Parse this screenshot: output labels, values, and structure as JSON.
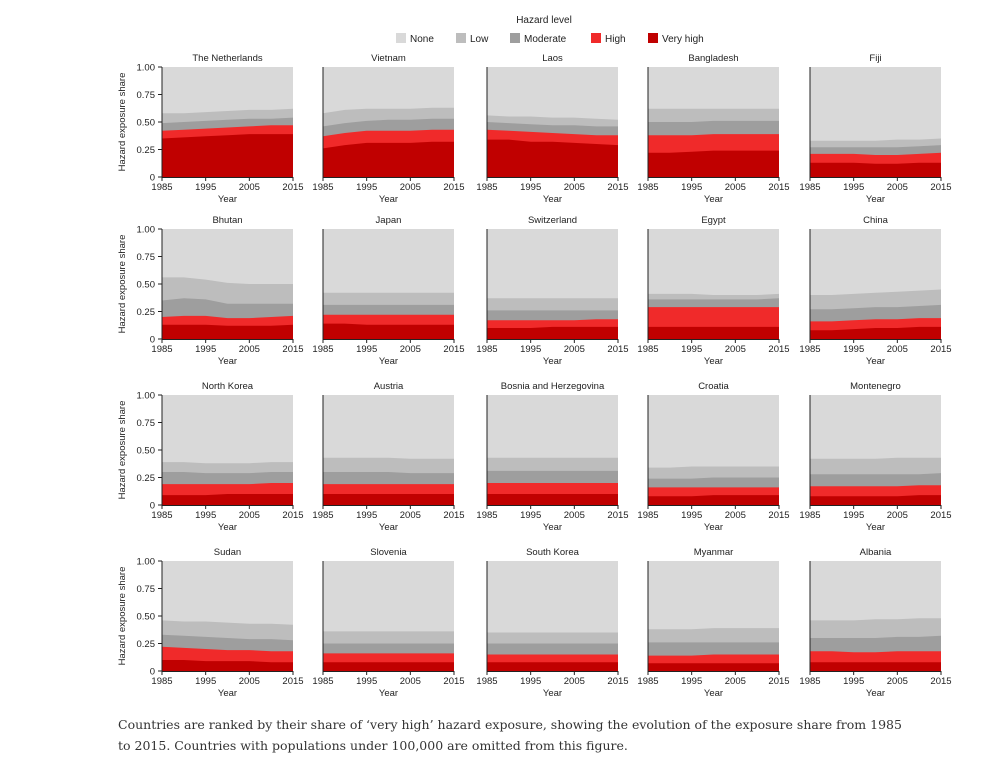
{
  "legend": {
    "title": "Hazard level",
    "items": [
      {
        "label": "None",
        "color": "#d9d9d9"
      },
      {
        "label": "Low",
        "color": "#bdbdbd"
      },
      {
        "label": "Moderate",
        "color": "#9e9e9e"
      },
      {
        "label": "High",
        "color": "#f02a2a"
      },
      {
        "label": "Very high",
        "color": "#c00000"
      }
    ]
  },
  "caption": "Countries are ranked by their share of ‘very high’ hazard exposure, showing the evolution of the exposure share from 1985 to 2015. Countries with populations under 100,000 are omitted from this figure.",
  "chart_data": {
    "type": "area",
    "stacked": true,
    "xlabel": "Year",
    "ylabel": "Hazard exposure share",
    "x_ticks": [
      1985,
      1995,
      2005,
      2015
    ],
    "y_ticks": [
      "0",
      "0.25",
      "0.50",
      "0.75",
      "1.00"
    ],
    "ylim": [
      0,
      1
    ],
    "xlim": [
      1985,
      2015
    ],
    "x": [
      1985,
      1990,
      1995,
      2000,
      2005,
      2010,
      2015
    ],
    "series_order": [
      "Very high",
      "High",
      "Moderate",
      "Low",
      "None"
    ],
    "panels": [
      {
        "title": "The Netherlands",
        "cumulative": {
          "Very high": [
            0.35,
            0.36,
            0.37,
            0.38,
            0.39,
            0.39,
            0.39
          ],
          "High": [
            0.42,
            0.43,
            0.44,
            0.45,
            0.46,
            0.47,
            0.47
          ],
          "Moderate": [
            0.49,
            0.5,
            0.51,
            0.52,
            0.53,
            0.53,
            0.54
          ],
          "Low": [
            0.58,
            0.58,
            0.59,
            0.6,
            0.61,
            0.61,
            0.62
          ]
        }
      },
      {
        "title": "Vietnam",
        "cumulative": {
          "Very high": [
            0.26,
            0.29,
            0.31,
            0.31,
            0.31,
            0.32,
            0.32
          ],
          "High": [
            0.37,
            0.4,
            0.42,
            0.42,
            0.42,
            0.43,
            0.43
          ],
          "Moderate": [
            0.46,
            0.49,
            0.51,
            0.52,
            0.52,
            0.53,
            0.53
          ],
          "Low": [
            0.58,
            0.61,
            0.62,
            0.62,
            0.62,
            0.63,
            0.63
          ]
        }
      },
      {
        "title": "Laos",
        "cumulative": {
          "Very high": [
            0.34,
            0.34,
            0.32,
            0.32,
            0.31,
            0.3,
            0.29
          ],
          "High": [
            0.43,
            0.42,
            0.41,
            0.4,
            0.39,
            0.38,
            0.38
          ],
          "Moderate": [
            0.5,
            0.49,
            0.48,
            0.47,
            0.47,
            0.46,
            0.46
          ],
          "Low": [
            0.56,
            0.55,
            0.55,
            0.54,
            0.54,
            0.53,
            0.52
          ]
        }
      },
      {
        "title": "Bangladesh",
        "cumulative": {
          "Very high": [
            0.22,
            0.22,
            0.23,
            0.24,
            0.24,
            0.24,
            0.24
          ],
          "High": [
            0.38,
            0.38,
            0.38,
            0.39,
            0.39,
            0.39,
            0.39
          ],
          "Moderate": [
            0.5,
            0.5,
            0.5,
            0.51,
            0.51,
            0.51,
            0.51
          ],
          "Low": [
            0.62,
            0.62,
            0.62,
            0.62,
            0.62,
            0.62,
            0.62
          ]
        }
      },
      {
        "title": "Fiji",
        "cumulative": {
          "Very high": [
            0.13,
            0.13,
            0.13,
            0.12,
            0.12,
            0.13,
            0.13
          ],
          "High": [
            0.21,
            0.21,
            0.21,
            0.2,
            0.2,
            0.21,
            0.22
          ],
          "Moderate": [
            0.27,
            0.27,
            0.27,
            0.27,
            0.27,
            0.28,
            0.29
          ],
          "Low": [
            0.33,
            0.33,
            0.33,
            0.33,
            0.34,
            0.34,
            0.35
          ]
        }
      },
      {
        "title": "Bhutan",
        "cumulative": {
          "Very high": [
            0.13,
            0.13,
            0.13,
            0.12,
            0.12,
            0.12,
            0.13
          ],
          "High": [
            0.2,
            0.21,
            0.21,
            0.19,
            0.19,
            0.2,
            0.21
          ],
          "Moderate": [
            0.35,
            0.37,
            0.36,
            0.32,
            0.32,
            0.32,
            0.32
          ],
          "Low": [
            0.56,
            0.56,
            0.54,
            0.51,
            0.5,
            0.5,
            0.5
          ]
        }
      },
      {
        "title": "Japan",
        "cumulative": {
          "Very high": [
            0.14,
            0.14,
            0.13,
            0.13,
            0.13,
            0.13,
            0.13
          ],
          "High": [
            0.22,
            0.22,
            0.22,
            0.22,
            0.22,
            0.22,
            0.22
          ],
          "Moderate": [
            0.31,
            0.31,
            0.31,
            0.31,
            0.31,
            0.31,
            0.31
          ],
          "Low": [
            0.42,
            0.42,
            0.42,
            0.42,
            0.42,
            0.42,
            0.42
          ]
        }
      },
      {
        "title": "Switzerland",
        "cumulative": {
          "Very high": [
            0.1,
            0.1,
            0.1,
            0.11,
            0.11,
            0.11,
            0.11
          ],
          "High": [
            0.17,
            0.17,
            0.17,
            0.17,
            0.17,
            0.18,
            0.18
          ],
          "Moderate": [
            0.26,
            0.26,
            0.26,
            0.26,
            0.26,
            0.26,
            0.26
          ],
          "Low": [
            0.37,
            0.37,
            0.37,
            0.37,
            0.37,
            0.37,
            0.37
          ]
        }
      },
      {
        "title": "Egypt",
        "cumulative": {
          "Very high": [
            0.11,
            0.11,
            0.11,
            0.11,
            0.11,
            0.11,
            0.11
          ],
          "High": [
            0.29,
            0.29,
            0.29,
            0.29,
            0.29,
            0.29,
            0.29
          ],
          "Moderate": [
            0.36,
            0.36,
            0.36,
            0.36,
            0.36,
            0.36,
            0.37
          ],
          "Low": [
            0.41,
            0.41,
            0.41,
            0.4,
            0.4,
            0.4,
            0.41
          ]
        }
      },
      {
        "title": "China",
        "cumulative": {
          "Very high": [
            0.08,
            0.08,
            0.09,
            0.1,
            0.1,
            0.11,
            0.11
          ],
          "High": [
            0.16,
            0.16,
            0.17,
            0.18,
            0.18,
            0.19,
            0.19
          ],
          "Moderate": [
            0.27,
            0.27,
            0.28,
            0.29,
            0.29,
            0.3,
            0.31
          ],
          "Low": [
            0.4,
            0.4,
            0.41,
            0.42,
            0.43,
            0.44,
            0.45
          ]
        }
      },
      {
        "title": "North Korea",
        "cumulative": {
          "Very high": [
            0.09,
            0.09,
            0.09,
            0.1,
            0.1,
            0.1,
            0.1
          ],
          "High": [
            0.19,
            0.19,
            0.19,
            0.19,
            0.19,
            0.2,
            0.2
          ],
          "Moderate": [
            0.3,
            0.3,
            0.29,
            0.29,
            0.29,
            0.3,
            0.3
          ],
          "Low": [
            0.39,
            0.39,
            0.38,
            0.38,
            0.38,
            0.39,
            0.39
          ]
        }
      },
      {
        "title": "Austria",
        "cumulative": {
          "Very high": [
            0.1,
            0.1,
            0.1,
            0.1,
            0.1,
            0.1,
            0.1
          ],
          "High": [
            0.19,
            0.19,
            0.19,
            0.19,
            0.19,
            0.19,
            0.19
          ],
          "Moderate": [
            0.3,
            0.3,
            0.3,
            0.3,
            0.29,
            0.29,
            0.29
          ],
          "Low": [
            0.43,
            0.43,
            0.43,
            0.43,
            0.42,
            0.42,
            0.42
          ]
        }
      },
      {
        "title": "Bosnia and Herzegovina",
        "cumulative": {
          "Very high": [
            0.1,
            0.1,
            0.1,
            0.1,
            0.1,
            0.1,
            0.1
          ],
          "High": [
            0.2,
            0.2,
            0.2,
            0.2,
            0.2,
            0.2,
            0.2
          ],
          "Moderate": [
            0.31,
            0.31,
            0.31,
            0.31,
            0.31,
            0.31,
            0.31
          ],
          "Low": [
            0.43,
            0.43,
            0.43,
            0.43,
            0.43,
            0.43,
            0.43
          ]
        }
      },
      {
        "title": "Croatia",
        "cumulative": {
          "Very high": [
            0.08,
            0.08,
            0.08,
            0.09,
            0.09,
            0.09,
            0.09
          ],
          "High": [
            0.16,
            0.16,
            0.16,
            0.16,
            0.16,
            0.16,
            0.16
          ],
          "Moderate": [
            0.24,
            0.24,
            0.24,
            0.25,
            0.25,
            0.25,
            0.25
          ],
          "Low": [
            0.34,
            0.34,
            0.35,
            0.35,
            0.35,
            0.35,
            0.35
          ]
        }
      },
      {
        "title": "Montenegro",
        "cumulative": {
          "Very high": [
            0.08,
            0.08,
            0.08,
            0.08,
            0.08,
            0.09,
            0.09
          ],
          "High": [
            0.17,
            0.17,
            0.17,
            0.17,
            0.17,
            0.18,
            0.18
          ],
          "Moderate": [
            0.28,
            0.28,
            0.28,
            0.28,
            0.28,
            0.28,
            0.29
          ],
          "Low": [
            0.42,
            0.42,
            0.42,
            0.42,
            0.43,
            0.43,
            0.43
          ]
        }
      },
      {
        "title": "Sudan",
        "cumulative": {
          "Very high": [
            0.1,
            0.1,
            0.09,
            0.09,
            0.09,
            0.08,
            0.08
          ],
          "High": [
            0.22,
            0.21,
            0.2,
            0.19,
            0.19,
            0.18,
            0.18
          ],
          "Moderate": [
            0.33,
            0.32,
            0.31,
            0.3,
            0.29,
            0.29,
            0.28
          ],
          "Low": [
            0.46,
            0.45,
            0.45,
            0.44,
            0.43,
            0.43,
            0.42
          ]
        }
      },
      {
        "title": "Slovenia",
        "cumulative": {
          "Very high": [
            0.08,
            0.08,
            0.08,
            0.08,
            0.08,
            0.08,
            0.08
          ],
          "High": [
            0.16,
            0.16,
            0.16,
            0.16,
            0.16,
            0.16,
            0.16
          ],
          "Moderate": [
            0.25,
            0.25,
            0.25,
            0.25,
            0.25,
            0.25,
            0.25
          ],
          "Low": [
            0.36,
            0.36,
            0.36,
            0.36,
            0.36,
            0.36,
            0.36
          ]
        }
      },
      {
        "title": "South Korea",
        "cumulative": {
          "Very high": [
            0.08,
            0.08,
            0.08,
            0.08,
            0.08,
            0.08,
            0.08
          ],
          "High": [
            0.15,
            0.15,
            0.15,
            0.15,
            0.15,
            0.15,
            0.15
          ],
          "Moderate": [
            0.25,
            0.25,
            0.25,
            0.25,
            0.25,
            0.25,
            0.25
          ],
          "Low": [
            0.35,
            0.35,
            0.35,
            0.35,
            0.35,
            0.35,
            0.35
          ]
        }
      },
      {
        "title": "Myanmar",
        "cumulative": {
          "Very high": [
            0.07,
            0.07,
            0.07,
            0.07,
            0.07,
            0.07,
            0.07
          ],
          "High": [
            0.14,
            0.14,
            0.14,
            0.15,
            0.15,
            0.15,
            0.15
          ],
          "Moderate": [
            0.26,
            0.26,
            0.26,
            0.26,
            0.26,
            0.26,
            0.26
          ],
          "Low": [
            0.38,
            0.38,
            0.38,
            0.39,
            0.39,
            0.39,
            0.39
          ]
        }
      },
      {
        "title": "Albania",
        "cumulative": {
          "Very high": [
            0.08,
            0.08,
            0.08,
            0.08,
            0.08,
            0.08,
            0.08
          ],
          "High": [
            0.18,
            0.18,
            0.17,
            0.17,
            0.18,
            0.18,
            0.18
          ],
          "Moderate": [
            0.3,
            0.3,
            0.3,
            0.3,
            0.31,
            0.31,
            0.32
          ],
          "Low": [
            0.46,
            0.46,
            0.46,
            0.47,
            0.47,
            0.48,
            0.48
          ]
        }
      }
    ]
  }
}
